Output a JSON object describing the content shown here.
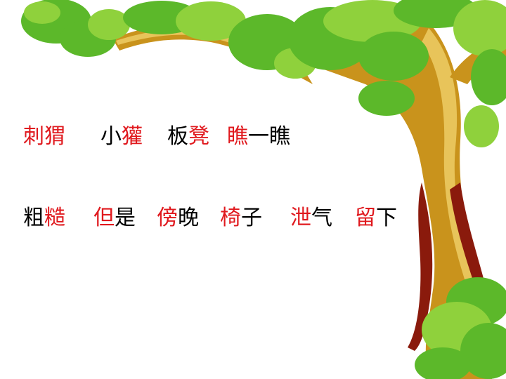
{
  "colors": {
    "highlight": "#e0191e",
    "text": "#000000",
    "foliage": "#5cb82a",
    "foliage_light": "#8fd13c",
    "trunk": "#c9931c",
    "trunk_light": "#e8c45a",
    "trunk_dark": "#8a1a0c"
  },
  "lines": [
    {
      "words": [
        {
          "parts": [
            {
              "text": "刺猬",
              "highlight": true
            }
          ]
        },
        {
          "parts": [
            {
              "text": "小",
              "highlight": false
            },
            {
              "text": "獾",
              "highlight": true
            }
          ]
        },
        {
          "parts": [
            {
              "text": "板",
              "highlight": false
            },
            {
              "text": "凳",
              "highlight": true
            }
          ]
        },
        {
          "parts": [
            {
              "text": "瞧",
              "highlight": true
            },
            {
              "text": "一瞧",
              "highlight": false
            }
          ]
        }
      ]
    },
    {
      "words": [
        {
          "parts": [
            {
              "text": "粗",
              "highlight": false
            },
            {
              "text": "糙",
              "highlight": true
            }
          ]
        },
        {
          "parts": [
            {
              "text": "但",
              "highlight": true
            },
            {
              "text": "是",
              "highlight": false
            }
          ]
        },
        {
          "parts": [
            {
              "text": "傍",
              "highlight": true
            },
            {
              "text": "晚",
              "highlight": false
            }
          ]
        },
        {
          "parts": [
            {
              "text": "椅",
              "highlight": true
            },
            {
              "text": "子",
              "highlight": false
            }
          ]
        },
        {
          "parts": [
            {
              "text": "泄",
              "highlight": true
            },
            {
              "text": "气",
              "highlight": false
            }
          ]
        },
        {
          "parts": [
            {
              "text": "留",
              "highlight": true
            },
            {
              "text": "下",
              "highlight": false
            }
          ]
        }
      ]
    }
  ]
}
